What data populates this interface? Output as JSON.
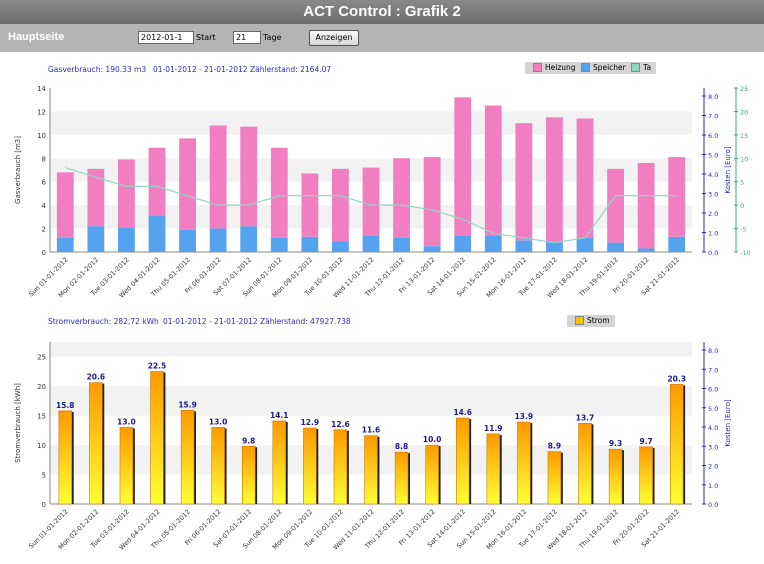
{
  "header": {
    "title": "ACT Control : Grafik 2"
  },
  "toolbar": {
    "home_label": "Hauptseite",
    "start_value": "2012-01-1",
    "start_label": "Start",
    "days_value": "21",
    "days_label": "Tage",
    "show_button": "Anzeigen"
  },
  "gas": {
    "info_consumption": "Gasverbrauch: 190.33 m3",
    "info_range": "01-01-2012 - 21-01-2012",
    "info_meter": "Zählerstand: 2164.07",
    "legend": {
      "heating": "Heizung",
      "storage": "Speicher",
      "ta": "Ta"
    }
  },
  "power": {
    "info_consumption": "Stromverbrauch: 282,72 kWh",
    "info_range": "01-01-2012 - 21-01-2012",
    "info_meter": "Zählerstand: 47927.738",
    "legend": {
      "power": "Strom"
    }
  },
  "chart_data": [
    {
      "type": "bar",
      "stacked": true,
      "categories": [
        "Sun 01-01-2012",
        "Mon 02-01-2012",
        "Tue 03-01-2012",
        "Wed 04-01-2012",
        "Thu 05-01-2012",
        "Fri 06-01-2012",
        "Sat 07-01-2012",
        "Sun 08-01-2012",
        "Mon 09-01-2012",
        "Tue 10-01-2012",
        "Wed 11-01-2012",
        "Thu 12-01-2012",
        "Fri 13-01-2012",
        "Sat 14-01-2012",
        "Sun 15-01-2012",
        "Mon 16-01-2012",
        "Tue 17-01-2012",
        "Wed 18-01-2012",
        "Thu 19-01-2012",
        "Fri 20-01-2012",
        "Sat 21-01-2012"
      ],
      "series": [
        {
          "name": "Speicher",
          "color": "#55a3ee",
          "values": [
            1.2,
            2.2,
            2.1,
            3.1,
            1.9,
            2.0,
            2.2,
            1.2,
            1.3,
            0.9,
            1.4,
            1.2,
            0.5,
            1.4,
            1.4,
            1.0,
            0.9,
            1.2,
            0.8,
            0.3,
            1.3
          ]
        },
        {
          "name": "Heizung",
          "color": "#f07ec0",
          "values": [
            5.6,
            4.9,
            5.8,
            5.8,
            7.8,
            8.8,
            8.5,
            7.7,
            5.4,
            6.2,
            5.8,
            6.8,
            7.6,
            11.8,
            11.1,
            10.0,
            10.6,
            10.2,
            6.3,
            7.3,
            6.8
          ]
        },
        {
          "name": "Ta",
          "type": "line",
          "axis": "right2",
          "color": "#8fd6c0",
          "values": [
            8,
            6,
            4,
            4,
            2,
            0,
            0,
            2,
            2,
            2,
            0,
            0,
            -1,
            -3,
            -6,
            -7,
            -8,
            -7,
            2,
            2,
            2
          ]
        }
      ],
      "ylabel": "Gasverbrauch [m3]",
      "y2label": "Kosten [Euro]",
      "ylim": [
        0,
        14
      ],
      "yticks": [
        0,
        2,
        4,
        6,
        8,
        10,
        12,
        14
      ],
      "y2ticks": [
        "0.0",
        "1.0",
        "2.0",
        "3.0",
        "4.0",
        "5.0",
        "6.0",
        "7.0",
        "8.0"
      ],
      "y3ticks": [
        "-10",
        "-5",
        "0",
        "5",
        "10",
        "15",
        "20",
        "25"
      ],
      "y3lim": [
        -10,
        25
      ]
    },
    {
      "type": "bar",
      "categories": [
        "Sun 01-01-2012",
        "Mon 02-01-2012",
        "Tue 03-01-2012",
        "Wed 04-01-2012",
        "Thu 05-01-2012",
        "Fri 06-01-2012",
        "Sat 07-01-2012",
        "Sun 08-01-2012",
        "Mon 09-01-2012",
        "Tue 10-01-2012",
        "Wed 11-01-2012",
        "Thu 12-01-2012",
        "Fri 13-01-2012",
        "Sat 14-01-2012",
        "Sun 15-01-2012",
        "Mon 16-01-2012",
        "Tue 17-01-2012",
        "Wed 18-01-2012",
        "Thu 19-01-2012",
        "Fri 20-01-2012",
        "Sat 21-01-2012"
      ],
      "series": [
        {
          "name": "Strom",
          "color": "#ffc000",
          "values": [
            15.8,
            20.6,
            13.0,
            22.5,
            15.9,
            13.0,
            9.8,
            14.1,
            12.9,
            12.6,
            11.6,
            8.8,
            10.0,
            14.6,
            11.9,
            13.9,
            8.9,
            13.7,
            9.3,
            9.7,
            20.3
          ],
          "labels": [
            "15.8",
            "20.6",
            "13.0",
            "22.5",
            "15.9",
            "13.0",
            "9.8",
            "14.1",
            "12.9",
            "12.6",
            "11.6",
            "8.8",
            "10.0",
            "14.6",
            "11.9",
            "13.9",
            "8.9",
            "13.7",
            "9.3",
            "9.7",
            "20.3"
          ]
        }
      ],
      "ylabel": "Stromverbrauch [kWh]",
      "y2label": "Kosten [Euro]",
      "ylim": [
        0,
        27.5
      ],
      "yticks": [
        0,
        5,
        10,
        15,
        20,
        25
      ],
      "y2ticks": [
        "0.0",
        "1.0",
        "2.0",
        "3.0",
        "4.0",
        "5.0",
        "6.0",
        "7.0",
        "8.0"
      ]
    }
  ]
}
